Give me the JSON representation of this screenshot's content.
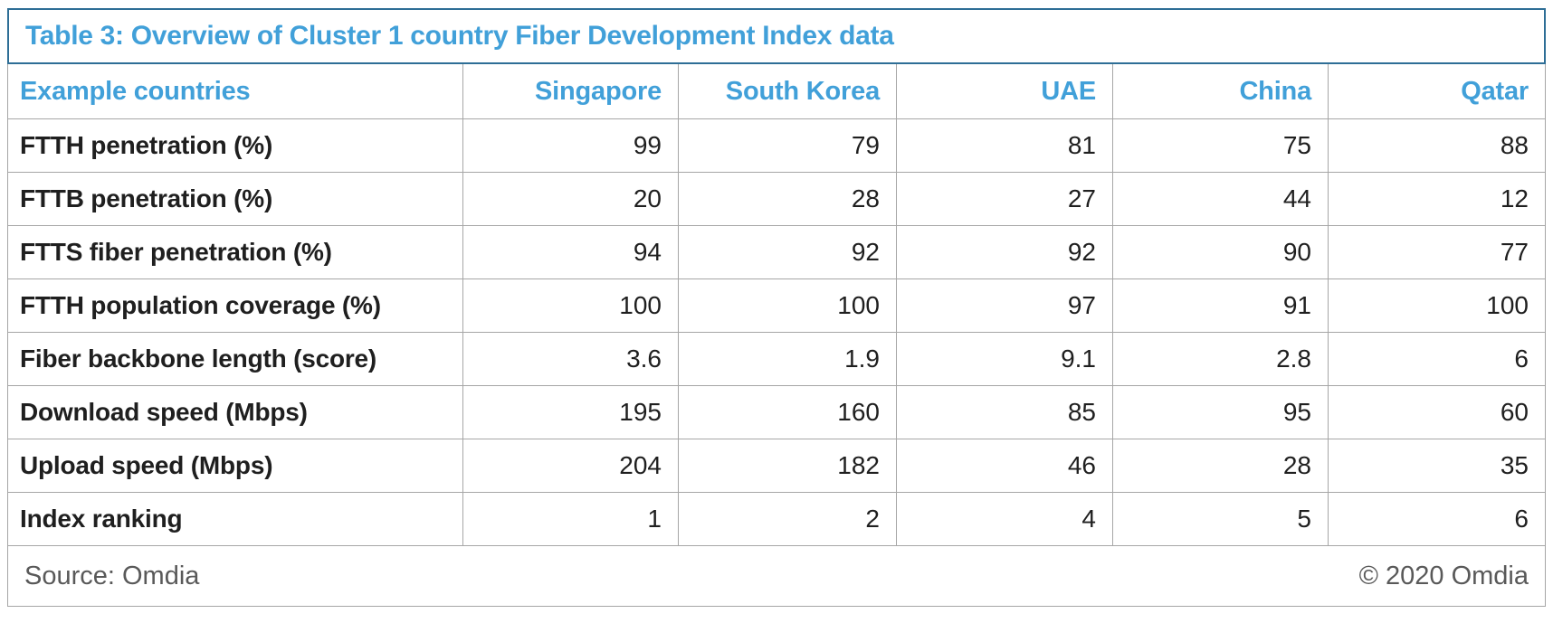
{
  "chart_data": {
    "type": "table",
    "title": "Table 3: Overview of Cluster 1 country Fiber Development Index data",
    "corner_header": "Example countries",
    "columns": [
      "Singapore",
      "South Korea",
      "UAE",
      "China",
      "Qatar"
    ],
    "rows": [
      {
        "label": "FTTH penetration (%)",
        "values": [
          99,
          79,
          81,
          75,
          88
        ]
      },
      {
        "label": "FTTB penetration (%)",
        "values": [
          20,
          28,
          27,
          44,
          12
        ]
      },
      {
        "label": "FTTS fiber penetration (%)",
        "values": [
          94,
          92,
          92,
          90,
          77
        ]
      },
      {
        "label": "FTTH population coverage (%)",
        "values": [
          100,
          100,
          97,
          91,
          100
        ]
      },
      {
        "label": "Fiber backbone length (score)",
        "values": [
          3.6,
          1.9,
          9.1,
          2.8,
          6
        ]
      },
      {
        "label": "Download speed (Mbps)",
        "values": [
          195,
          160,
          85,
          95,
          60
        ]
      },
      {
        "label": "Upload speed (Mbps)",
        "values": [
          204,
          182,
          46,
          28,
          35
        ]
      },
      {
        "label": "Index ranking",
        "values": [
          1,
          2,
          4,
          5,
          6
        ]
      }
    ],
    "source": "Source: Omdia",
    "copyright": "© 2020 Omdia"
  },
  "colors": {
    "accent_blue": "#41A0D9",
    "border_blue": "#2E6E96",
    "grid_gray": "#A6A6A6",
    "text_dark": "#1F1F1F",
    "text_gray": "#595959"
  }
}
